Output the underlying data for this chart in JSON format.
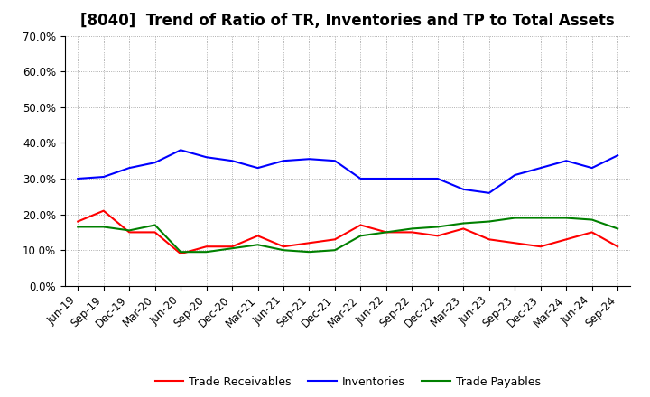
{
  "title": "[8040]  Trend of Ratio of TR, Inventories and TP to Total Assets",
  "x_labels": [
    "Jun-19",
    "Sep-19",
    "Dec-19",
    "Mar-20",
    "Jun-20",
    "Sep-20",
    "Dec-20",
    "Mar-21",
    "Jun-21",
    "Sep-21",
    "Dec-21",
    "Mar-22",
    "Jun-22",
    "Sep-22",
    "Dec-22",
    "Mar-23",
    "Jun-23",
    "Sep-23",
    "Dec-23",
    "Mar-24",
    "Jun-24",
    "Sep-24"
  ],
  "trade_receivables": [
    18.0,
    21.0,
    15.0,
    15.0,
    9.0,
    11.0,
    11.0,
    14.0,
    11.0,
    12.0,
    13.0,
    17.0,
    15.0,
    15.0,
    14.0,
    16.0,
    13.0,
    12.0,
    11.0,
    13.0,
    15.0,
    11.0
  ],
  "inventories": [
    30.0,
    30.5,
    33.0,
    34.5,
    38.0,
    36.0,
    35.0,
    33.0,
    35.0,
    35.5,
    35.0,
    30.0,
    30.0,
    30.0,
    30.0,
    27.0,
    26.0,
    31.0,
    33.0,
    35.0,
    33.0,
    36.5
  ],
  "trade_payables": [
    16.5,
    16.5,
    15.5,
    17.0,
    9.5,
    9.5,
    10.5,
    11.5,
    10.0,
    9.5,
    10.0,
    14.0,
    15.0,
    16.0,
    16.5,
    17.5,
    18.0,
    19.0,
    19.0,
    19.0,
    18.5,
    16.0
  ],
  "ylim": [
    0.0,
    70.0
  ],
  "yticks": [
    0.0,
    10.0,
    20.0,
    30.0,
    40.0,
    50.0,
    60.0,
    70.0
  ],
  "colors": {
    "trade_receivables": "#ff0000",
    "inventories": "#0000ff",
    "trade_payables": "#008000"
  },
  "legend_labels": [
    "Trade Receivables",
    "Inventories",
    "Trade Payables"
  ],
  "background_color": "#ffffff",
  "grid_color": "#aaaaaa",
  "title_fontsize": 12,
  "tick_fontsize": 8.5,
  "legend_fontsize": 9
}
